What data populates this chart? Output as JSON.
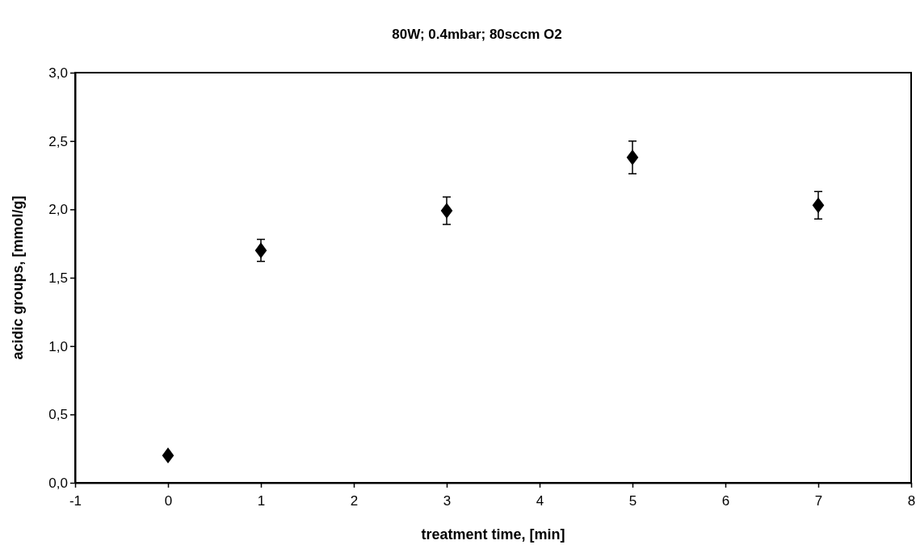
{
  "chart_data": {
    "type": "scatter",
    "title": "80W; 0.4mbar; 80sccm O2",
    "xlabel": "treatment time, [min]",
    "ylabel": "acidic groups, [mmol/g]",
    "x": [
      0,
      1,
      3,
      5,
      7
    ],
    "values": [
      0.2,
      1.7,
      1.99,
      2.38,
      2.03
    ],
    "errors": [
      null,
      0.08,
      0.1,
      0.12,
      0.1
    ],
    "color": "#000000",
    "marker": "diamond",
    "xlim": [
      -1,
      8
    ],
    "xticks": [
      -1,
      0,
      1,
      2,
      3,
      4,
      5,
      6,
      7,
      8
    ],
    "ylim": [
      0,
      3
    ],
    "yticks": [
      {
        "value": 0,
        "label": "0,0"
      },
      {
        "value": 0.5,
        "label": "0,5"
      },
      {
        "value": 1,
        "label": "1,0"
      },
      {
        "value": 1.5,
        "label": "1,5"
      },
      {
        "value": 2,
        "label": "2,0"
      },
      {
        "value": 2.5,
        "label": "2,5"
      },
      {
        "value": 3,
        "label": "3,0"
      }
    ],
    "grid": false
  }
}
